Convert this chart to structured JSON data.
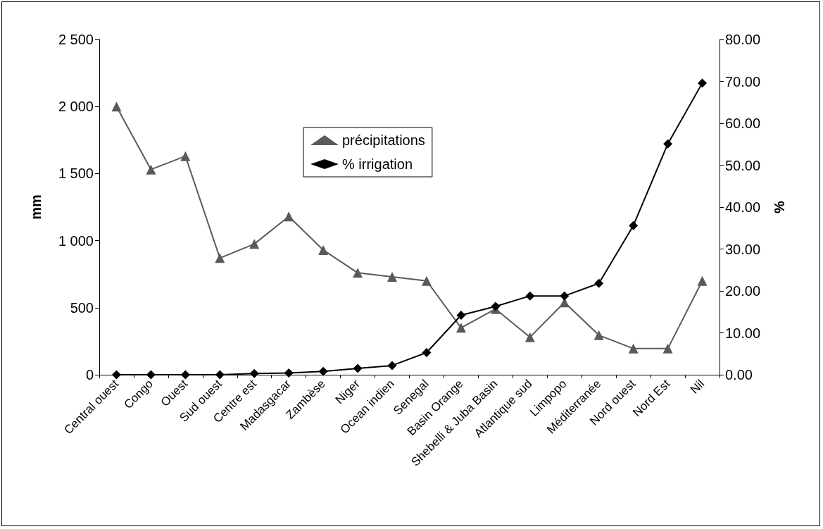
{
  "chart_data": {
    "type": "line",
    "categories": [
      "Central ouest",
      "Congo",
      "Ouest",
      "Sud ouest",
      "Centre est",
      "Madasgacar",
      "Zambèse",
      "Niger",
      "Ocean indien",
      "Senegal",
      "Basin Orange",
      "Shebelli & Juba Basin",
      "Atlantique sud",
      "Limpopo",
      "Méditerranée",
      "Nord ouest",
      "Nord Est",
      "Nil"
    ],
    "series": [
      {
        "name": "précipitations",
        "color": "#5a5a5a",
        "marker": "triangle",
        "values": [
          2000,
          1530,
          1630,
          870,
          975,
          1180,
          930,
          760,
          730,
          700,
          350,
          490,
          280,
          540,
          295,
          195,
          195,
          700
        ]
      },
      {
        "name": "% irrigation",
        "color": "#000000",
        "marker": "diamond",
        "axis": "y2",
        "values": [
          0,
          0,
          0,
          0,
          0.3,
          0.4,
          0.8,
          1.5,
          2.2,
          5.3,
          14.2,
          16.3,
          18.8,
          18.8,
          21.8,
          35.6,
          55.1,
          69.6
        ]
      }
    ],
    "ylabel": "mm",
    "y2label": "%",
    "ylim": [
      0,
      2500
    ],
    "yticks": [
      0,
      500,
      {
        "value": 1000,
        "label": "1 000"
      },
      {
        "value": 1500,
        "label": "1 500"
      },
      {
        "value": 2000,
        "label": "2 000"
      },
      {
        "value": 2500,
        "label": "2 500"
      }
    ],
    "y2lim": [
      0,
      80
    ],
    "y2ticks": [
      {
        "value": 0,
        "label": "0.00"
      },
      {
        "value": 10,
        "label": "10.00"
      },
      {
        "value": 20,
        "label": "20.00"
      },
      {
        "value": 30,
        "label": "30.00"
      },
      {
        "value": 40,
        "label": "40.00"
      },
      {
        "value": 50,
        "label": "50.00"
      },
      {
        "value": 60,
        "label": "60.00"
      },
      {
        "value": 70,
        "label": "70.00"
      },
      {
        "value": 80,
        "label": "80.00"
      }
    ],
    "legend": "top",
    "grid": false,
    "line_style": "solid"
  }
}
